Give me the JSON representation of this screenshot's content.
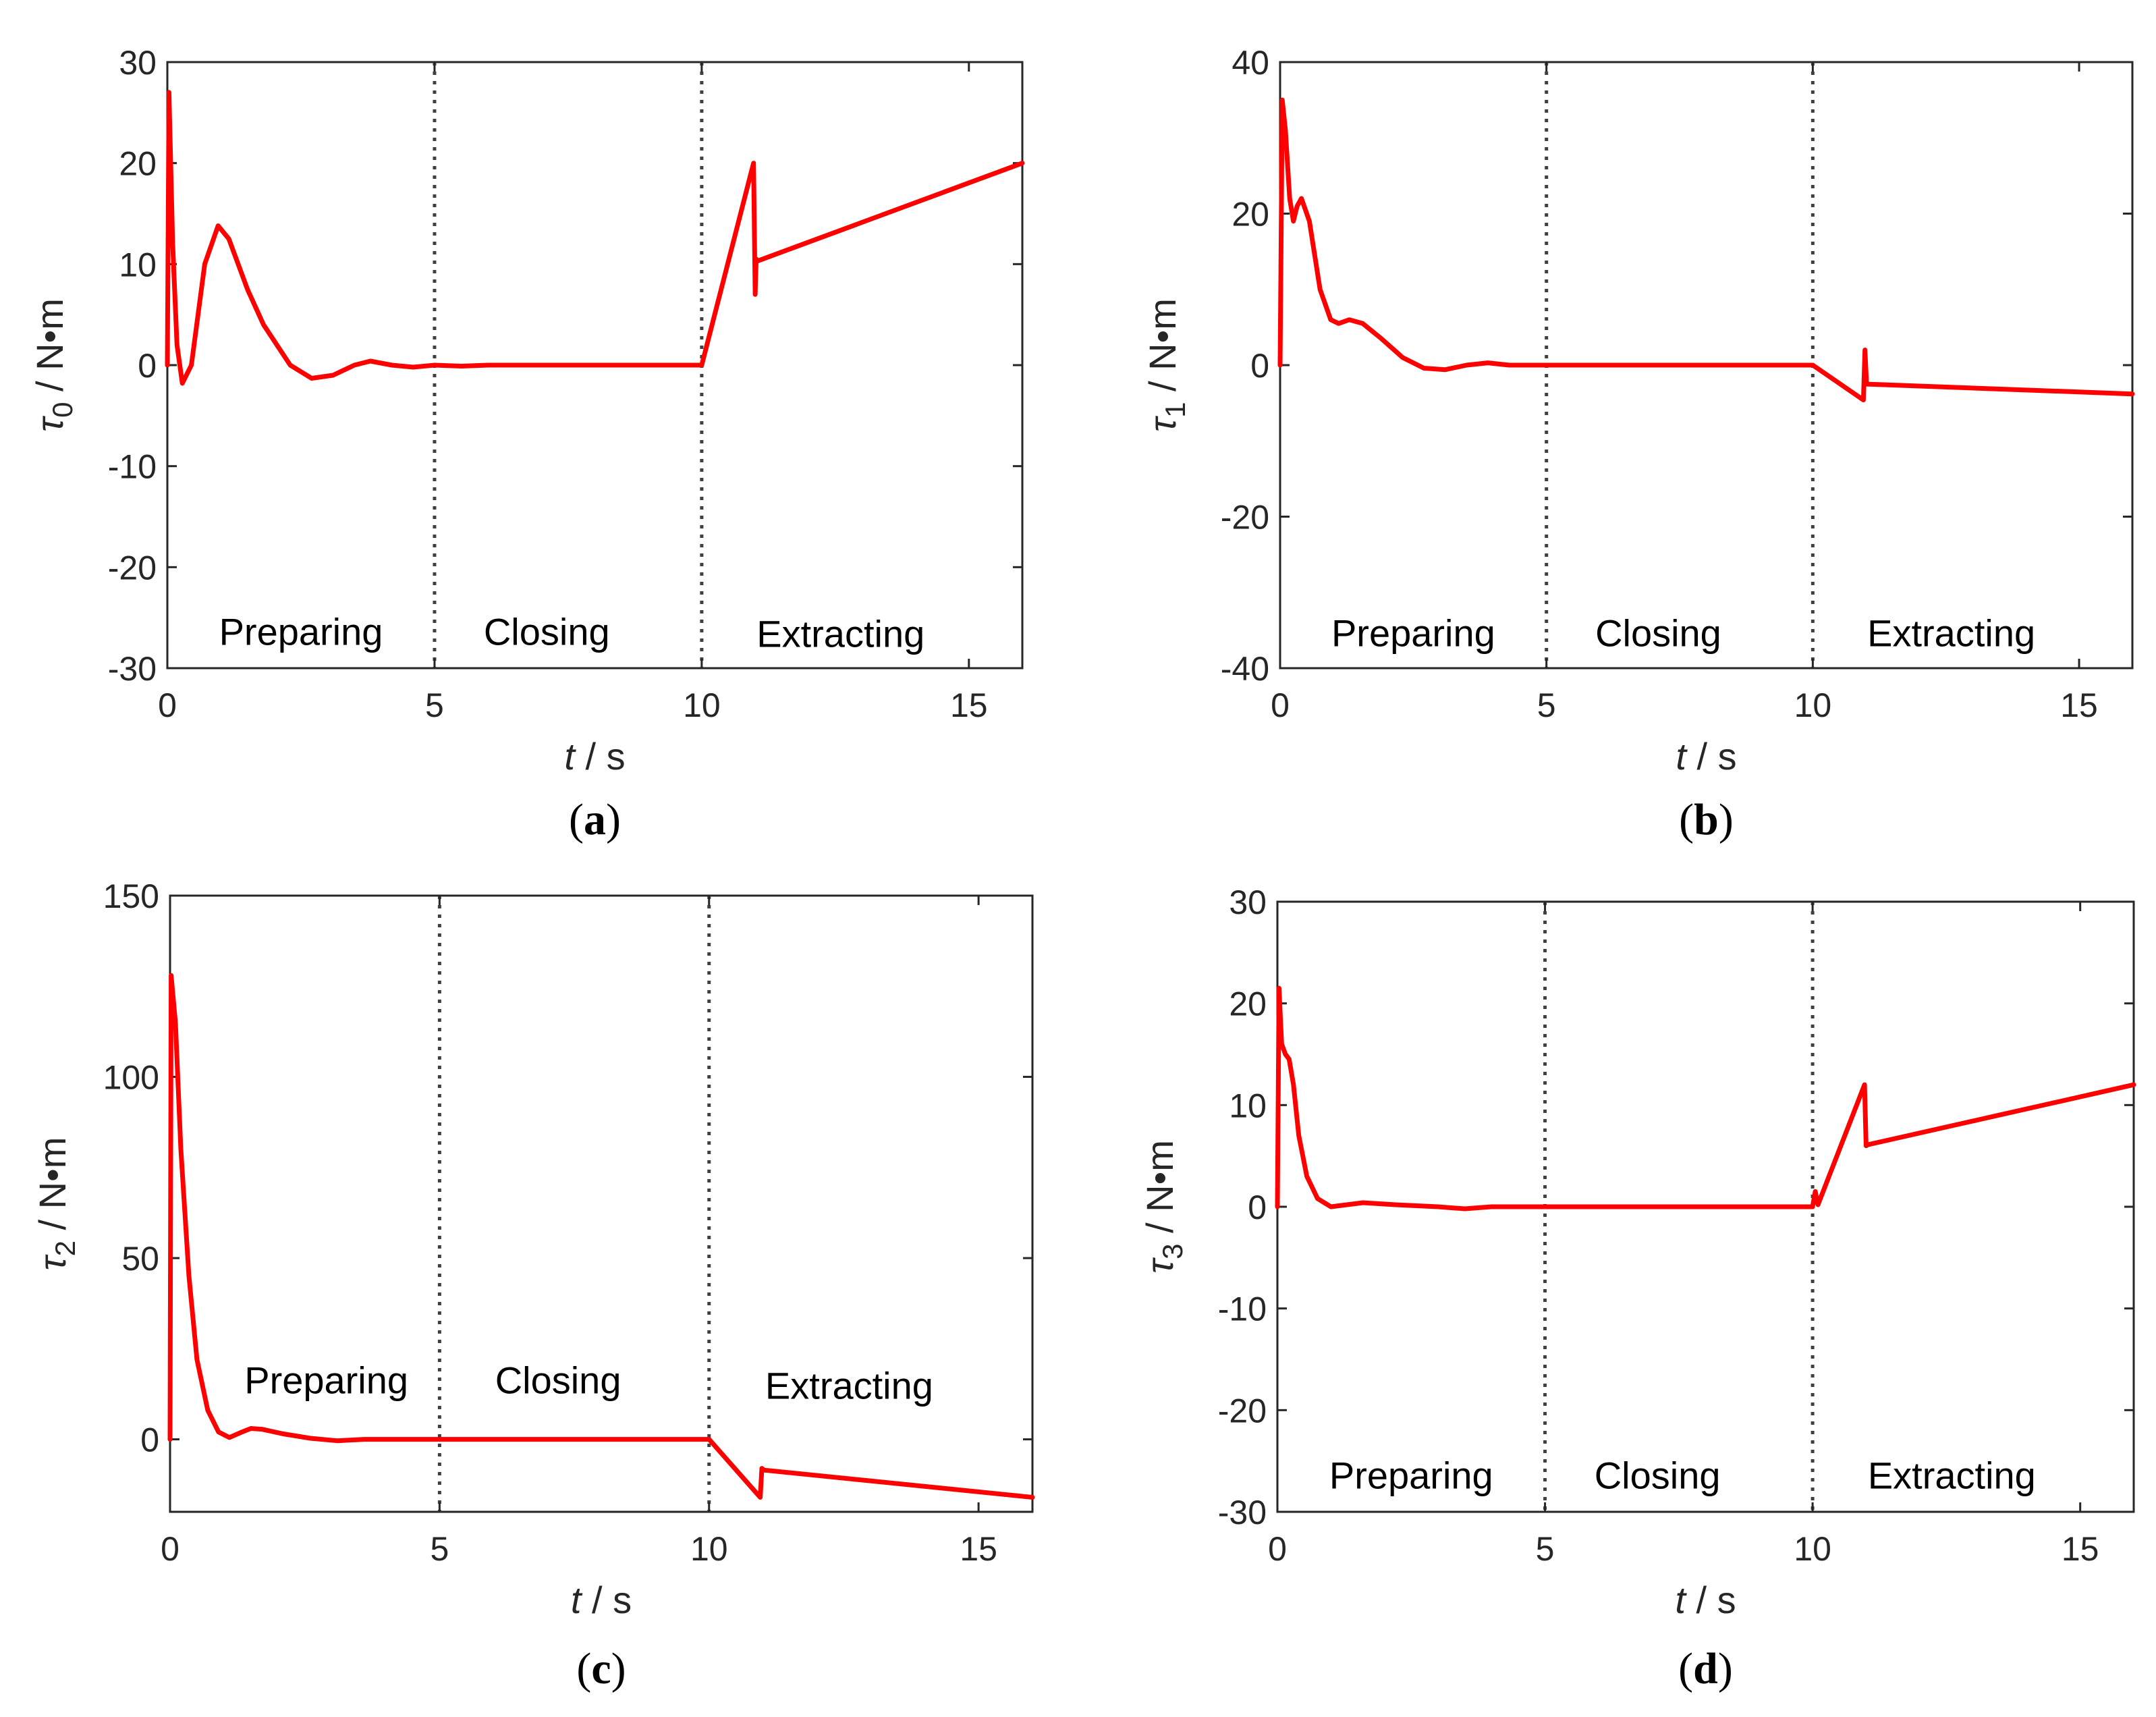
{
  "colors": {
    "line": "#ff0000",
    "axis": "#262626",
    "divider": "#404040"
  },
  "chart_data": [
    {
      "type": "line",
      "caption_letter": "a",
      "ylabel_symbol": "τ",
      "ylabel_sub": "0",
      "ylabel_unit": " / N•m",
      "xlabel_symbol": "t",
      "xlabel_unit": " / s",
      "xlim": [
        0,
        16
      ],
      "ylim": [
        -30,
        30
      ],
      "xticks": [
        0,
        5,
        10,
        15
      ],
      "yticks": [
        -30,
        -20,
        -10,
        0,
        10,
        20,
        30
      ],
      "phase_boundaries": [
        5,
        10
      ],
      "phases": [
        {
          "label": "Preparing",
          "x": 2.5,
          "y": -26.5
        },
        {
          "label": "Closing",
          "x": 7.1,
          "y": -26.5
        },
        {
          "label": "Extracting",
          "x": 12.6,
          "y": -26.7
        }
      ],
      "series": [
        {
          "name": "tau0",
          "points": [
            [
              0,
              0
            ],
            [
              0.03,
              27
            ],
            [
              0.1,
              12
            ],
            [
              0.18,
              2
            ],
            [
              0.28,
              -1.8
            ],
            [
              0.45,
              0
            ],
            [
              0.7,
              10
            ],
            [
              0.95,
              13.8
            ],
            [
              1.15,
              12.5
            ],
            [
              1.5,
              7.5
            ],
            [
              1.8,
              4
            ],
            [
              2.3,
              0
            ],
            [
              2.7,
              -1.3
            ],
            [
              3.1,
              -1
            ],
            [
              3.5,
              0
            ],
            [
              3.8,
              0.4
            ],
            [
              4.2,
              0
            ],
            [
              4.6,
              -0.2
            ],
            [
              5,
              0
            ],
            [
              5.5,
              -0.1
            ],
            [
              6,
              0
            ],
            [
              7,
              0
            ],
            [
              8,
              0
            ],
            [
              9,
              0
            ],
            [
              10,
              0
            ],
            [
              10.97,
              20
            ],
            [
              11,
              7
            ],
            [
              11.02,
              10.5
            ],
            [
              11.04,
              10.3
            ],
            [
              16,
              20
            ]
          ]
        }
      ]
    },
    {
      "type": "line",
      "caption_letter": "b",
      "ylabel_symbol": "τ",
      "ylabel_sub": "1",
      "ylabel_unit": " / N•m",
      "xlabel_symbol": "t",
      "xlabel_unit": " / s",
      "xlim": [
        0,
        16
      ],
      "ylim": [
        -40,
        40
      ],
      "xticks": [
        0,
        5,
        10,
        15
      ],
      "yticks": [
        -40,
        -20,
        0,
        20,
        40
      ],
      "phase_boundaries": [
        5,
        10
      ],
      "phases": [
        {
          "label": "Preparing",
          "x": 2.5,
          "y": -35.5
        },
        {
          "label": "Closing",
          "x": 7.1,
          "y": -35.5
        },
        {
          "label": "Extracting",
          "x": 12.6,
          "y": -35.5
        }
      ],
      "series": [
        {
          "name": "tau1",
          "points": [
            [
              0,
              0
            ],
            [
              0.04,
              35
            ],
            [
              0.1,
              31
            ],
            [
              0.18,
              22
            ],
            [
              0.25,
              19
            ],
            [
              0.32,
              21
            ],
            [
              0.4,
              22
            ],
            [
              0.55,
              19
            ],
            [
              0.75,
              10
            ],
            [
              0.95,
              6
            ],
            [
              1.1,
              5.5
            ],
            [
              1.3,
              6
            ],
            [
              1.55,
              5.5
            ],
            [
              1.9,
              3.5
            ],
            [
              2.3,
              1
            ],
            [
              2.7,
              -0.4
            ],
            [
              3.1,
              -0.6
            ],
            [
              3.5,
              0
            ],
            [
              3.9,
              0.3
            ],
            [
              4.3,
              0
            ],
            [
              5,
              0
            ],
            [
              6,
              0
            ],
            [
              7,
              0
            ],
            [
              8,
              0
            ],
            [
              9,
              0
            ],
            [
              10,
              0
            ],
            [
              10.95,
              -4.6
            ],
            [
              10.98,
              2
            ],
            [
              11.01,
              -2.5
            ],
            [
              16,
              -3.8
            ]
          ]
        }
      ]
    },
    {
      "type": "line",
      "caption_letter": "c",
      "ylabel_symbol": "τ",
      "ylabel_sub": "2",
      "ylabel_unit": " / N•m",
      "xlabel_symbol": "t",
      "xlabel_unit": " / s",
      "xlim": [
        0,
        16
      ],
      "ylim": [
        -20,
        150
      ],
      "xticks": [
        0,
        5,
        10,
        15
      ],
      "yticks": [
        0,
        50,
        100,
        150
      ],
      "phase_boundaries": [
        5,
        10
      ],
      "phases": [
        {
          "label": "Preparing",
          "x": 2.9,
          "y": 16
        },
        {
          "label": "Closing",
          "x": 7.2,
          "y": 16
        },
        {
          "label": "Extracting",
          "x": 12.6,
          "y": 14.5
        }
      ],
      "series": [
        {
          "name": "tau2",
          "points": [
            [
              0,
              0
            ],
            [
              0.02,
              128
            ],
            [
              0.1,
              115
            ],
            [
              0.2,
              80
            ],
            [
              0.35,
              45
            ],
            [
              0.5,
              22
            ],
            [
              0.7,
              8
            ],
            [
              0.9,
              2
            ],
            [
              1.1,
              0.5
            ],
            [
              1.3,
              1.8
            ],
            [
              1.5,
              3
            ],
            [
              1.7,
              2.8
            ],
            [
              2.1,
              1.5
            ],
            [
              2.6,
              0.3
            ],
            [
              3.1,
              -0.4
            ],
            [
              3.6,
              0
            ],
            [
              4.2,
              0
            ],
            [
              5,
              0
            ],
            [
              6,
              0
            ],
            [
              7,
              0
            ],
            [
              8,
              0
            ],
            [
              9,
              0
            ],
            [
              10,
              0
            ],
            [
              10.95,
              -16
            ],
            [
              10.98,
              -8
            ],
            [
              11.02,
              -8.5
            ],
            [
              16,
              -16
            ]
          ]
        }
      ]
    },
    {
      "type": "line",
      "caption_letter": "d",
      "ylabel_symbol": "τ",
      "ylabel_sub": "3",
      "ylabel_unit": " / N•m",
      "xlabel_symbol": "t",
      "xlabel_unit": " / s",
      "xlim": [
        0,
        16
      ],
      "ylim": [
        -30,
        30
      ],
      "xticks": [
        0,
        5,
        10,
        15
      ],
      "yticks": [
        -30,
        -20,
        -10,
        0,
        10,
        20,
        30
      ],
      "phase_boundaries": [
        5,
        10
      ],
      "phases": [
        {
          "label": "Preparing",
          "x": 2.5,
          "y": -26.5
        },
        {
          "label": "Closing",
          "x": 7.1,
          "y": -26.5
        },
        {
          "label": "Extracting",
          "x": 12.6,
          "y": -26.5
        }
      ],
      "series": [
        {
          "name": "tau3",
          "points": [
            [
              0,
              0
            ],
            [
              0.03,
              21.5
            ],
            [
              0.08,
              16
            ],
            [
              0.15,
              15
            ],
            [
              0.22,
              14.5
            ],
            [
              0.3,
              12
            ],
            [
              0.4,
              7
            ],
            [
              0.55,
              3
            ],
            [
              0.75,
              0.8
            ],
            [
              1,
              0
            ],
            [
              1.3,
              0.2
            ],
            [
              1.6,
              0.4
            ],
            [
              2.2,
              0.2
            ],
            [
              3,
              0
            ],
            [
              3.5,
              -0.2
            ],
            [
              4,
              0
            ],
            [
              5,
              0
            ],
            [
              6,
              0
            ],
            [
              7,
              0
            ],
            [
              8,
              0
            ],
            [
              9,
              0
            ],
            [
              10,
              0
            ],
            [
              10.05,
              1.5
            ],
            [
              10.1,
              0.2
            ],
            [
              10.97,
              12
            ],
            [
              11,
              6
            ],
            [
              11.03,
              6.1
            ],
            [
              16,
              12
            ]
          ]
        }
      ]
    }
  ]
}
